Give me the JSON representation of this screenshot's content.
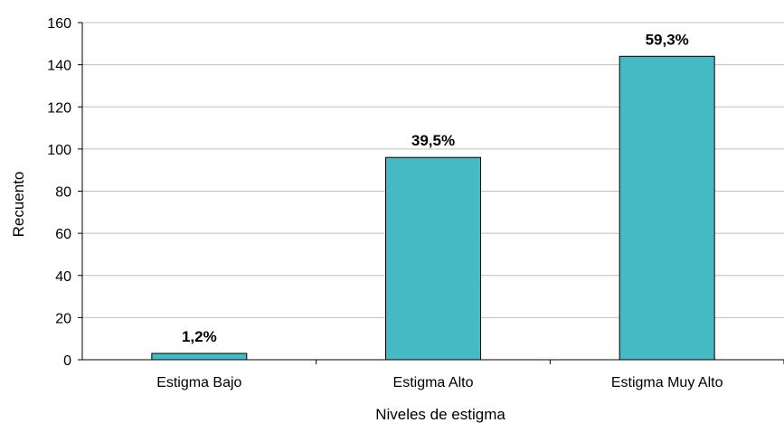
{
  "chart_data": {
    "type": "bar",
    "title": "",
    "xlabel": "Niveles de estigma",
    "ylabel": "Recuento",
    "categories": [
      "Estigma Bajo",
      "Estigma Alto",
      "Estigma Muy Alto"
    ],
    "values": [
      3,
      96,
      144
    ],
    "data_labels": [
      "1,2%",
      "39,5%",
      "59,3%"
    ],
    "ylim": [
      0,
      160
    ],
    "yticks": [
      "0",
      "20",
      "40",
      "60",
      "80",
      "100",
      "120",
      "140",
      "160"
    ],
    "grid": true,
    "legend": "none",
    "bar_color": "#45BAC5",
    "bar_edge_color": "#000000",
    "grid_color": "#C0C0C0"
  }
}
